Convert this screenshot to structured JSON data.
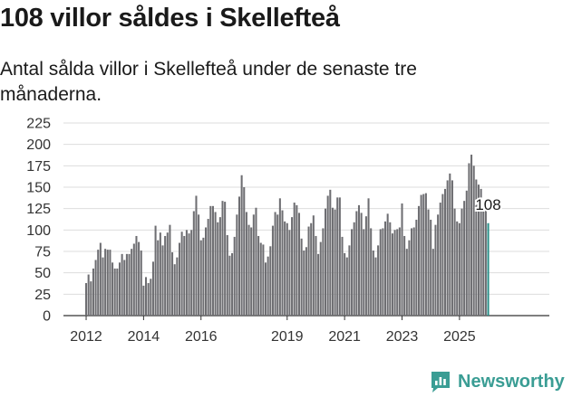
{
  "title": "108 villor såldes i Skellefteå",
  "subtitle": "Antal sålda villor i Skellefteå under de senaste tre månaderna.",
  "brand": {
    "name": "Newsworthy",
    "icon": "newsworthy-logo-icon"
  },
  "colors": {
    "bar": "#6e6e72",
    "highlight": "#2a8f88",
    "grid": "#dddddd",
    "axis": "#333333",
    "brand": "#3a9d94"
  },
  "chart_data": {
    "type": "bar",
    "title": "108 villor såldes i Skellefteå",
    "subtitle": "Antal sålda villor i Skellefteå under de senaste tre månaderna.",
    "xlabel": "",
    "ylabel": "",
    "ylim": [
      0,
      225
    ],
    "yticks": [
      0,
      25,
      50,
      75,
      100,
      125,
      150,
      175,
      200,
      225
    ],
    "grid": true,
    "legend": "none",
    "first_month": "2012-01",
    "x_ticks": [
      {
        "label": "2012",
        "month": "2012-01"
      },
      {
        "label": "2014",
        "month": "2014-01"
      },
      {
        "label": "2016",
        "month": "2016-01"
      },
      {
        "label": "2019",
        "month": "2019-01"
      },
      {
        "label": "2021",
        "month": "2021-01"
      },
      {
        "label": "2023",
        "month": "2023-01"
      },
      {
        "label": "2025",
        "month": "2025-01"
      }
    ],
    "values": [
      38,
      48,
      40,
      55,
      65,
      77,
      85,
      68,
      78,
      77,
      77,
      62,
      55,
      55,
      62,
      72,
      65,
      72,
      72,
      78,
      84,
      93,
      86,
      76,
      35,
      45,
      38,
      43,
      63,
      105,
      88,
      97,
      82,
      93,
      97,
      106,
      74,
      60,
      68,
      85,
      98,
      93,
      100,
      96,
      100,
      122,
      140,
      118,
      88,
      91,
      103,
      113,
      128,
      128,
      121,
      109,
      115,
      134,
      133,
      94,
      70,
      73,
      92,
      118,
      139,
      164,
      150,
      121,
      106,
      103,
      118,
      126,
      93,
      85,
      83,
      62,
      69,
      81,
      105,
      121,
      118,
      137,
      123,
      110,
      108,
      100,
      115,
      132,
      129,
      120,
      90,
      76,
      80,
      104,
      108,
      117,
      93,
      72,
      86,
      102,
      125,
      140,
      147,
      126,
      124,
      138,
      138,
      92,
      73,
      68,
      82,
      101,
      109,
      122,
      129,
      120,
      101,
      116,
      137,
      102,
      76,
      68,
      82,
      101,
      102,
      110,
      119,
      109,
      96,
      100,
      101,
      103,
      131,
      93,
      78,
      88,
      102,
      103,
      112,
      128,
      141,
      142,
      143,
      124,
      112,
      78,
      106,
      118,
      132,
      142,
      148,
      158,
      166,
      158,
      125,
      110,
      108,
      125,
      134,
      146,
      178,
      188,
      175,
      159,
      153,
      148,
      124,
      125,
      108
    ],
    "annotations": [
      {
        "label": "108",
        "value": 108,
        "position": "last-bar"
      }
    ]
  }
}
